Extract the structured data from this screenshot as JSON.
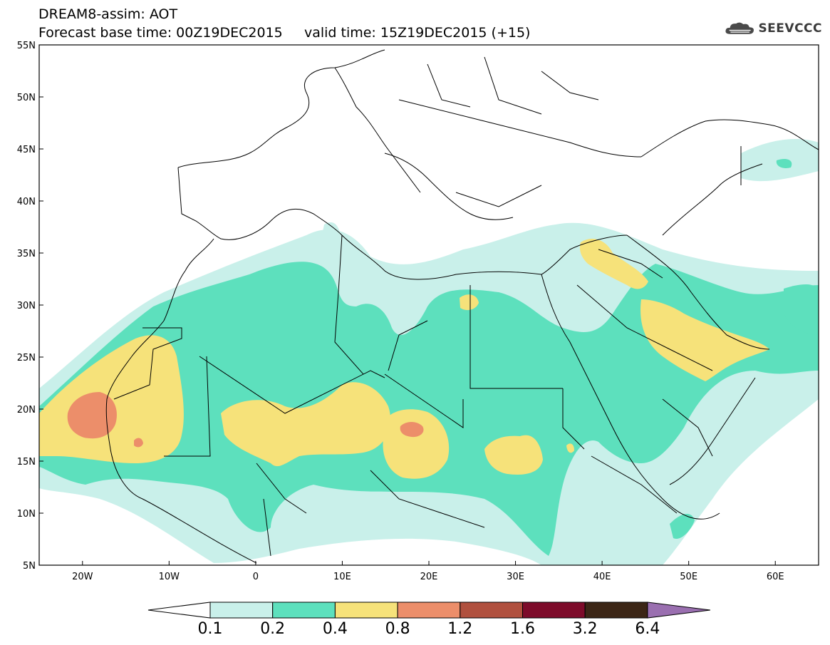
{
  "header": {
    "title_line1": "DREAM8-assim: AOT",
    "title_line2": "Forecast base time: 00Z19DEC2015     valid time: 15Z19DEC2015 (+15)",
    "logo_text": "SEEVCCC"
  },
  "map": {
    "lat_ticks": [
      "55N",
      "50N",
      "45N",
      "40N",
      "35N",
      "30N",
      "25N",
      "20N",
      "15N",
      "10N",
      "5N"
    ],
    "lon_ticks": [
      "20W",
      "10W",
      "0",
      "10E",
      "20E",
      "30E",
      "40E",
      "50E",
      "60E"
    ],
    "lon_range": [
      -25,
      65
    ],
    "lat_range": [
      5,
      55
    ]
  },
  "colorbar": {
    "levels": [
      "0.1",
      "0.2",
      "0.4",
      "0.8",
      "1.2",
      "1.6",
      "3.2",
      "6.4"
    ],
    "colors": [
      "#c9f0ea",
      "#5de0bd",
      "#f6e27a",
      "#ec8e6a",
      "#b0503e",
      "#7d0b2a",
      "#3c2616",
      "#9a6fb0"
    ]
  }
}
